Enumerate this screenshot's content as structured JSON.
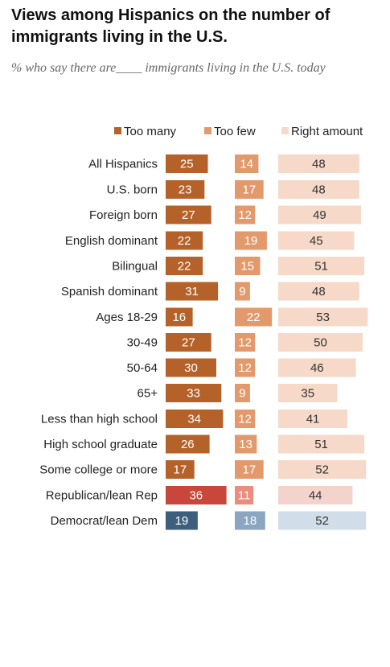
{
  "header": {
    "title": "Views among Hispanics on the number of immigrants living in the U.S.",
    "subtitle": "% who say there are____ immigrants living in the U.S. today"
  },
  "legend": [
    {
      "label": "Too many",
      "color": "#b5622a"
    },
    {
      "label": "Too few",
      "color": "#e29a6c"
    },
    {
      "label": "Right amount",
      "color": "#f6d9c8"
    }
  ],
  "colors": {
    "too_many": "#b5622a",
    "too_few": "#e29a6c",
    "right_amount": "#f6d9c8",
    "rep_too_many": "#c8473a",
    "rep_too_few": "#ea8d7e",
    "rep_right": "#f5d3cd",
    "dem_too_many": "#3d5f7d",
    "dem_too_few": "#8aa6c0",
    "dem_right": "#d1dde8"
  },
  "chart_data": {
    "type": "bar",
    "stacked": false,
    "series": [
      {
        "name": "Too many",
        "values": [
          25,
          23,
          27,
          22,
          22,
          31,
          16,
          27,
          30,
          33,
          34,
          26,
          17,
          36,
          19
        ]
      },
      {
        "name": "Too few",
        "values": [
          14,
          17,
          12,
          19,
          15,
          9,
          22,
          12,
          12,
          9,
          12,
          13,
          17,
          11,
          18
        ]
      },
      {
        "name": "Right amount",
        "values": [
          48,
          48,
          49,
          45,
          51,
          48,
          53,
          50,
          46,
          35,
          41,
          51,
          52,
          44,
          52
        ]
      }
    ],
    "categories": [
      "All Hispanics",
      "U.S. born",
      "Foreign born",
      "English dominant",
      "Bilingual",
      "Spanish dominant",
      "Ages 18-29",
      "30-49",
      "50-64",
      "65+",
      "Less than high school",
      "High school graduate",
      "Some college or more",
      "Republican/lean Rep",
      "Democrat/lean Dem"
    ],
    "groups": [
      [
        0
      ],
      [
        1,
        2
      ],
      [
        3,
        4,
        5
      ],
      [
        6,
        7,
        8,
        9
      ],
      [
        10,
        11,
        12
      ],
      [
        13,
        14
      ]
    ],
    "row_palettes": [
      "default",
      "default",
      "default",
      "default",
      "default",
      "default",
      "default",
      "default",
      "default",
      "default",
      "default",
      "default",
      "default",
      "rep",
      "dem"
    ],
    "title": "Views among Hispanics on the number of immigrants living in the U.S.",
    "subtitle": "% who say there are____ immigrants living in the U.S. today",
    "legend_position": "top-right",
    "grid": false
  }
}
